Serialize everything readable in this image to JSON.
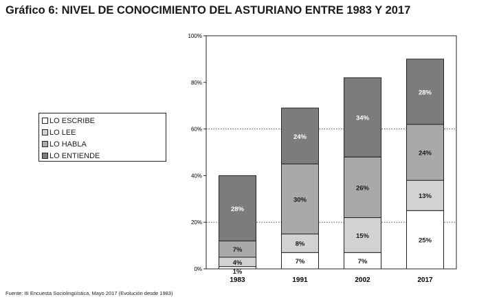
{
  "title": "Gráfico 6: NIVEL DE CONOCIMIENTO DEL ASTURIANO ENTRE 1983 Y 2017",
  "source": "Fuente: III Encuesta Sociolingüística, Mayo 2017 (Evolución desde 1983)",
  "chart_data": {
    "type": "bar",
    "stacked": true,
    "categories": [
      "1983",
      "1991",
      "2002",
      "2017"
    ],
    "series": [
      {
        "name": "LO ESCRIBE",
        "values": [
          1,
          7,
          7,
          25
        ],
        "labels": [
          "1%",
          "7%",
          "7%",
          "25%"
        ],
        "color": "#ffffff"
      },
      {
        "name": "LO LEE",
        "values": [
          4,
          8,
          15,
          13
        ],
        "labels": [
          "4%",
          "8%",
          "15%",
          "13%"
        ],
        "color": "#d2d2d2"
      },
      {
        "name": "LO HABLA",
        "values": [
          7,
          30,
          26,
          24
        ],
        "labels": [
          "7%",
          "30%",
          "26%",
          "24%"
        ],
        "color": "#a9a9a9"
      },
      {
        "name": "LO ENTIENDE",
        "values": [
          28,
          24,
          34,
          28
        ],
        "labels": [
          "28%",
          "24%",
          "34%",
          "28%"
        ],
        "color": "#7c7c7c"
      }
    ],
    "legend_order": [
      "LO ESCRIBE",
      "LO LEE",
      "LO HABLA",
      "LO ENTIENDE"
    ],
    "yticks": [
      "0%",
      "20%",
      "40%",
      "60%",
      "80%",
      "100%"
    ],
    "ylim": [
      0,
      100
    ],
    "gridlines": "dotted at 20%, 60%",
    "legend_position": "left"
  }
}
